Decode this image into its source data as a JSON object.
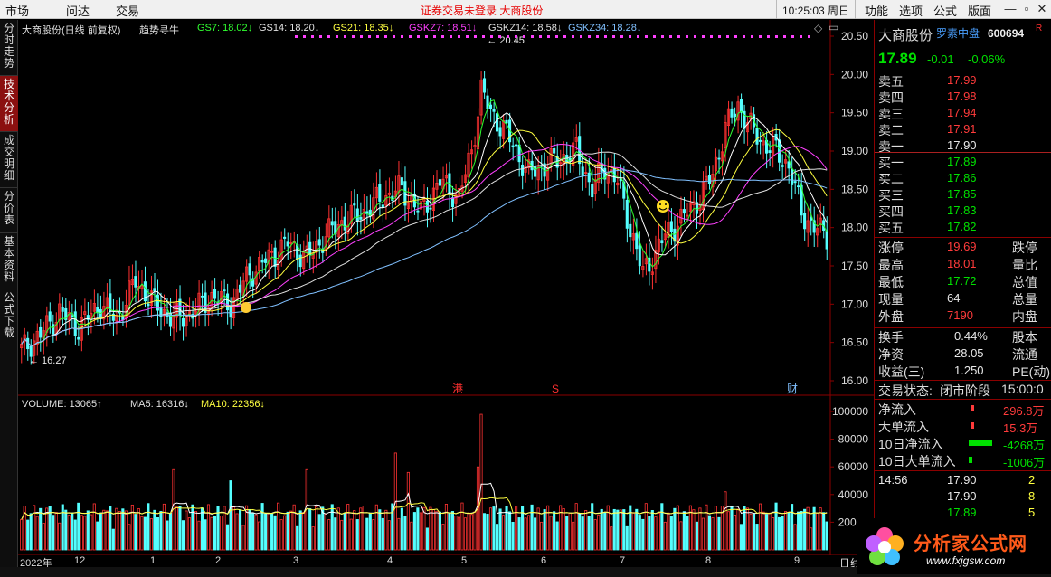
{
  "topbar": {
    "menus": [
      "市场",
      "问达",
      "交易"
    ],
    "notice": "证券交易未登录   大商股份",
    "clock": "10:25:03 周日",
    "right_menus": [
      "功能",
      "选项",
      "公式",
      "版面"
    ]
  },
  "left_tabs": [
    "分时走势",
    "技术分析",
    "成交明细",
    "分价表",
    "基本资料",
    "公式下载"
  ],
  "chart": {
    "legend_main": [
      {
        "text": "大商股份(日线 前复权)",
        "color": "#e0e0e0"
      },
      {
        "text": "趋势寻牛",
        "color": "#e0e0e0"
      },
      {
        "text": "GS7: 18.02↓",
        "color": "#30ff30"
      },
      {
        "text": "GS14: 18.20↓",
        "color": "#e0e0e0"
      },
      {
        "text": "GS21: 18.35↓",
        "color": "#ffff40"
      },
      {
        "text": "GSKZ7: 18.51↓",
        "color": "#ff40ff"
      },
      {
        "text": "GSKZ14: 18.58↓",
        "color": "#e0e0e0"
      },
      {
        "text": "GSKZ34: 18.28↓",
        "color": "#80c0ff"
      }
    ],
    "legend_vol": [
      {
        "text": "VOLUME: 13065↑",
        "color": "#e0e0e0"
      },
      {
        "text": "MA5: 16316↓",
        "color": "#e0e0e0"
      },
      {
        "text": "MA10: 22356↓",
        "color": "#ffff40"
      }
    ],
    "hi_label": "20.45",
    "lo_label": "16.27",
    "event_markers": [
      {
        "text": "港",
        "color": "#ff3030"
      },
      {
        "text": "S",
        "color": "#ff3030"
      },
      {
        "text": "财",
        "color": "#80c0ff"
      }
    ],
    "price_axis": [
      "20.50",
      "20.00",
      "19.50",
      "19.00",
      "18.50",
      "18.00",
      "17.50",
      "17.00",
      "16.50",
      "16.00"
    ],
    "volume_axis": [
      "100000",
      "80000",
      "60000",
      "40000",
      "20000"
    ],
    "x_ticks": [
      "2022年",
      "12",
      "1",
      "2",
      "3",
      "4",
      "5",
      "6",
      "7",
      "8",
      "9"
    ],
    "period_label": "日线"
  },
  "chart_data": {
    "type": "candlestick",
    "price_range": [
      16.0,
      20.5
    ],
    "volume_range": [
      0,
      100000
    ],
    "high": 20.45,
    "low": 16.27
  },
  "quote": {
    "name": "大商股份",
    "tag": "罗素中盘",
    "code": "600694",
    "r_mark": "R",
    "price": "17.89",
    "change": "-0.01",
    "change_pct": "-0.06%",
    "asks": [
      {
        "label": "卖五",
        "price": "17.99"
      },
      {
        "label": "卖四",
        "price": "17.98"
      },
      {
        "label": "卖三",
        "price": "17.94"
      },
      {
        "label": "卖二",
        "price": "17.91"
      },
      {
        "label": "卖一",
        "price": "17.90"
      }
    ],
    "bids": [
      {
        "label": "买一",
        "price": "17.89"
      },
      {
        "label": "买二",
        "price": "17.86"
      },
      {
        "label": "买三",
        "price": "17.85"
      },
      {
        "label": "买四",
        "price": "17.83"
      },
      {
        "label": "买五",
        "price": "17.82"
      }
    ],
    "stats": [
      {
        "label": "涨停",
        "value": "19.69",
        "label2": "跌停",
        "color": "#ff3b3b"
      },
      {
        "label": "最高",
        "value": "18.01",
        "label2": "量比",
        "color": "#ff3b3b"
      },
      {
        "label": "最低",
        "value": "17.72",
        "label2": "总值",
        "color": "#00e000"
      },
      {
        "label": "现量",
        "value": "64",
        "label2": "总量",
        "color": "#e8e8e8"
      },
      {
        "label": "外盘",
        "value": "7190",
        "label2": "内盘",
        "color": "#ff3b3b"
      }
    ],
    "stats2": [
      {
        "label": "换手",
        "value": "0.44%",
        "label2": "股本"
      },
      {
        "label": "净资",
        "value": "28.05",
        "label2": "流通"
      },
      {
        "label": "收益(三)",
        "value": "1.250",
        "label2": "PE(动)"
      }
    ],
    "trade_status_label": "交易状态:",
    "trade_status": "闭市阶段",
    "trade_time": "15:00:0",
    "flows": [
      {
        "label": "净流入",
        "value": "296.8万",
        "color": "#ff3b3b"
      },
      {
        "label": "大单流入",
        "value": "15.3万",
        "color": "#ff3b3b"
      },
      {
        "label": "10日净流入",
        "value": "-4268万",
        "color": "#00e000"
      },
      {
        "label": "10日大单流入",
        "value": "-1006万",
        "color": "#00e000"
      }
    ],
    "ticks": [
      {
        "time": "14:56",
        "price": "17.90",
        "vol": "2"
      },
      {
        "time": "",
        "price": "17.90",
        "vol": "8"
      },
      {
        "time": "",
        "price": "17.89",
        "vol": "5"
      }
    ]
  },
  "logo": {
    "text": "分析家公式网",
    "url": "www.fxjgsw.com"
  }
}
